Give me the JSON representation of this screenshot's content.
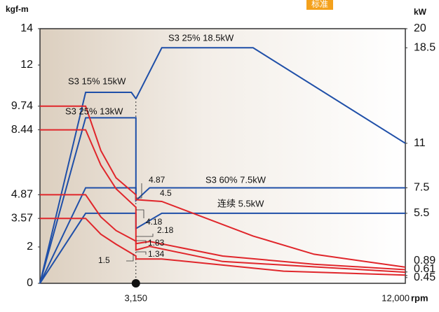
{
  "header": {
    "badge": "标准"
  },
  "chart_data": {
    "type": "line",
    "y_label": "kgf-m",
    "y2_label": "kW",
    "x_label": "rpm",
    "xlim": [
      0,
      12000
    ],
    "xticks": [
      {
        "value": 3150,
        "label": "3,150"
      },
      {
        "value": 12000,
        "label": "12,000"
      }
    ],
    "ylim": [
      0,
      14
    ],
    "yticks": [
      0,
      2,
      3.57,
      4.87,
      8.44,
      9.74,
      12,
      14
    ],
    "y2lim": [
      0,
      20
    ],
    "y2ticks": [
      20,
      18.5,
      11,
      7.5,
      5.5,
      0.89,
      0.61,
      0.45
    ],
    "grid": false,
    "series": [
      {
        "name": "S3 15% 15kW",
        "color": "#1f4fa8",
        "axis": "y2",
        "x": [
          0,
          1500,
          3000,
          3150
        ],
        "values": [
          0,
          15,
          15,
          14.5
        ]
      },
      {
        "name": "S3 25% 18.5kW",
        "color": "#1f4fa8",
        "axis": "y2",
        "x": [
          3150,
          4000,
          7000,
          12000
        ],
        "values": [
          14.5,
          18.5,
          18.5,
          11
        ]
      },
      {
        "name": "S3 25% 13kW",
        "color": "#1f4fa8",
        "axis": "y2",
        "x": [
          0,
          1500,
          3150,
          3150
        ],
        "values": [
          0,
          13,
          13,
          6.5
        ]
      },
      {
        "name": "S3 60% 7.5kW",
        "color": "#1f4fa8",
        "axis": "y2",
        "x": [
          0,
          1500,
          3150,
          3150,
          3600,
          12000
        ],
        "values": [
          0,
          7.5,
          7.5,
          6.5,
          7.5,
          7.5
        ]
      },
      {
        "name": "连续 5.5kW",
        "color": "#1f4fa8",
        "axis": "y2",
        "x": [
          0,
          1500,
          3150,
          3150,
          4000,
          12000
        ],
        "values": [
          0,
          5.5,
          5.5,
          4.3,
          5.5,
          5.5
        ]
      },
      {
        "color": "#e0262b",
        "x": [
          0,
          1500,
          2000,
          2500,
          3150,
          3150,
          4000,
          7000,
          9000,
          12000
        ],
        "values": [
          9.74,
          9.74,
          7.3,
          5.8,
          4.87,
          4.6,
          4.5,
          2.6,
          1.6,
          0.89
        ]
      },
      {
        "color": "#e0262b",
        "x": [
          0,
          1500,
          2000,
          2500,
          3150,
          3150,
          3600,
          6000,
          9000,
          12000
        ],
        "values": [
          8.44,
          8.44,
          6.5,
          5.2,
          4.18,
          2.18,
          2.3,
          1.5,
          1.05,
          0.75
        ]
      },
      {
        "color": "#e0262b",
        "x": [
          0,
          1500,
          2000,
          2500,
          3150,
          3150,
          3600,
          6000,
          12000
        ],
        "values": [
          4.87,
          4.87,
          3.65,
          2.9,
          2.32,
          1.83,
          2.03,
          1.2,
          0.61
        ]
      },
      {
        "color": "#e0262b",
        "x": [
          0,
          1500,
          2000,
          2500,
          3150,
          3150,
          4000,
          8000,
          12000
        ],
        "values": [
          3.57,
          3.57,
          2.7,
          2.15,
          1.5,
          1.34,
          1.34,
          0.67,
          0.45
        ]
      }
    ],
    "annotations": [
      "4.87",
      "4.5",
      "4.18",
      "2.18",
      "1.83",
      "1.5",
      "1.34"
    ]
  }
}
